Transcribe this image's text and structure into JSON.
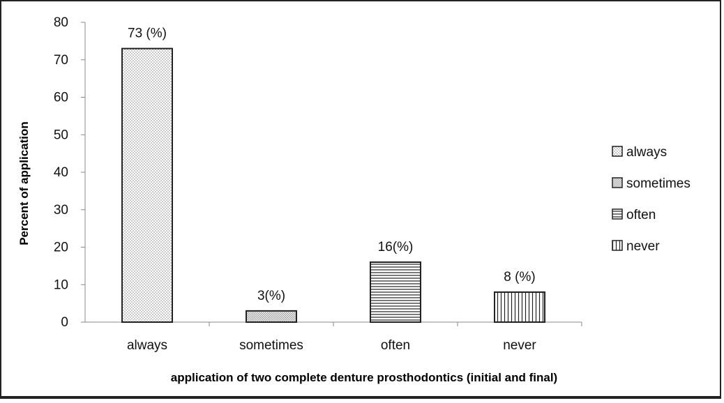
{
  "chart_data": {
    "type": "bar",
    "categories": [
      "always",
      "sometimes",
      "often",
      "never"
    ],
    "values": [
      73,
      3,
      16,
      8
    ],
    "data_labels": [
      "73  (%)",
      "3(%)",
      "16(%)",
      "8 (%)"
    ],
    "patterns": [
      "dots",
      "crosshatch",
      "horizontal",
      "vertical"
    ],
    "title": "",
    "xlabel": "application of two complete denture prosthodontics  (initial and final)",
    "ylabel": "Percent of application",
    "ylim": [
      0,
      80
    ],
    "yticks": [
      0,
      10,
      20,
      30,
      40,
      50,
      60,
      70,
      80
    ],
    "grid": false,
    "legend": {
      "placement": "right",
      "entries": [
        "always",
        "sometimes",
        "often",
        "never"
      ]
    },
    "colors": {
      "stroke": "#222222",
      "fill": "#ffffff",
      "text": "#111111"
    }
  }
}
